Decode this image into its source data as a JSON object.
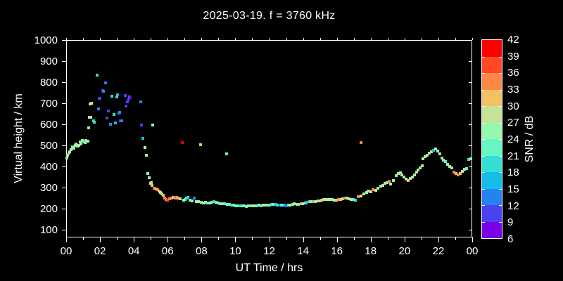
{
  "title": "2025-03-19. f = 3760 kHz",
  "chart_data": {
    "type": "scatter",
    "title": "2025-03-19. f = 3760 kHz",
    "xlabel": "UT Time / hrs",
    "ylabel": "Virtual height / km",
    "background": "#000000",
    "foreground": "#ffffff",
    "xlim": [
      0,
      24
    ],
    "x_major_hours": [
      0,
      2,
      4,
      6,
      8,
      10,
      12,
      14,
      16,
      18,
      20,
      22,
      24
    ],
    "x_tick_labels": [
      "00",
      "02",
      "04",
      "06",
      "08",
      "10",
      "12",
      "14",
      "16",
      "18",
      "20",
      "22",
      "00"
    ],
    "x_minor_hours": [
      1,
      3,
      5,
      7,
      9,
      11,
      13,
      15,
      17,
      19,
      21,
      23
    ],
    "y_major": [
      100,
      200,
      300,
      400,
      500,
      600,
      700,
      800,
      900,
      1000
    ],
    "y_tick_labels": [
      "100",
      "200",
      "300",
      "400",
      "500",
      "600",
      "700",
      "800",
      "900",
      "1000"
    ],
    "colorbar": {
      "label": "SNR / dB",
      "min": 6,
      "max": 42,
      "step": 3,
      "tick_labels_top_to_bottom": [
        "42",
        "39",
        "36",
        "33",
        "30",
        "27",
        "24",
        "21",
        "18",
        "15",
        "12",
        "9",
        "6"
      ],
      "colors_low_to_high": [
        "#7a00e6",
        "#4a42f0",
        "#2682f2",
        "#14bee6",
        "#34ded4",
        "#66f6c4",
        "#96f8ac",
        "#c4e394",
        "#f2c262",
        "#fc8848",
        "#ff4824",
        "#ff0000"
      ]
    },
    "point_format": [
      "ut_hours",
      "virtual_height_km",
      "snr_db"
    ],
    "points": [
      [
        0.0,
        440,
        24
      ],
      [
        0.05,
        452,
        27
      ],
      [
        0.13,
        462,
        24
      ],
      [
        0.17,
        470,
        27
      ],
      [
        0.25,
        480,
        24
      ],
      [
        0.33,
        492,
        21
      ],
      [
        0.42,
        487,
        27
      ],
      [
        0.5,
        500,
        24
      ],
      [
        0.54,
        507,
        27
      ],
      [
        0.63,
        498,
        27
      ],
      [
        0.71,
        500,
        24
      ],
      [
        0.79,
        517,
        27
      ],
      [
        0.83,
        507,
        24
      ],
      [
        0.92,
        525,
        24
      ],
      [
        1.0,
        518,
        21
      ],
      [
        1.08,
        515,
        24
      ],
      [
        1.13,
        522,
        27
      ],
      [
        1.25,
        520,
        24
      ],
      [
        1.29,
        583,
        24
      ],
      [
        1.34,
        633,
        27
      ],
      [
        1.38,
        697,
        27
      ],
      [
        1.42,
        635,
        24
      ],
      [
        1.46,
        700,
        27
      ],
      [
        1.58,
        617,
        18
      ],
      [
        1.63,
        610,
        18
      ],
      [
        1.79,
        833,
        18
      ],
      [
        1.88,
        673,
        12
      ],
      [
        1.92,
        723,
        9
      ],
      [
        1.96,
        725,
        9
      ],
      [
        2.13,
        760,
        9
      ],
      [
        2.17,
        758,
        12
      ],
      [
        2.29,
        797,
        12
      ],
      [
        2.38,
        630,
        9
      ],
      [
        2.46,
        663,
        9
      ],
      [
        2.59,
        600,
        12
      ],
      [
        2.67,
        733,
        18
      ],
      [
        2.8,
        647,
        18
      ],
      [
        2.88,
        607,
        15
      ],
      [
        2.96,
        730,
        18
      ],
      [
        3.0,
        740,
        15
      ],
      [
        3.09,
        653,
        12
      ],
      [
        3.13,
        657,
        12
      ],
      [
        3.17,
        617,
        9
      ],
      [
        3.26,
        617,
        12
      ],
      [
        3.46,
        737,
        9
      ],
      [
        3.51,
        687,
        9
      ],
      [
        3.59,
        707,
        9
      ],
      [
        3.67,
        720,
        9
      ],
      [
        3.71,
        730,
        12
      ],
      [
        3.76,
        727,
        6
      ],
      [
        4.38,
        707,
        12
      ],
      [
        4.42,
        597,
        9
      ],
      [
        4.5,
        533,
        15
      ],
      [
        4.63,
        490,
        24
      ],
      [
        4.71,
        453,
        24
      ],
      [
        4.8,
        367,
        24
      ],
      [
        4.87,
        347,
        27
      ],
      [
        4.95,
        320,
        27
      ],
      [
        5.0,
        323,
        27
      ],
      [
        5.05,
        310,
        30
      ],
      [
        5.1,
        598,
        24
      ],
      [
        5.17,
        297,
        33
      ],
      [
        5.3,
        293,
        30
      ],
      [
        5.38,
        290,
        33
      ],
      [
        5.47,
        283,
        30
      ],
      [
        5.55,
        277,
        27
      ],
      [
        5.63,
        270,
        27
      ],
      [
        5.72,
        263,
        30
      ],
      [
        5.8,
        250,
        33
      ],
      [
        5.88,
        243,
        33
      ],
      [
        5.97,
        240,
        36
      ],
      [
        6.09,
        247,
        33
      ],
      [
        6.2,
        250,
        33
      ],
      [
        6.3,
        252,
        30
      ],
      [
        6.42,
        250,
        33
      ],
      [
        6.51,
        253,
        33
      ],
      [
        6.6,
        250,
        30
      ],
      [
        6.72,
        247,
        27
      ],
      [
        6.85,
        513,
        39
      ],
      [
        6.93,
        240,
        24
      ],
      [
        7.0,
        243,
        21
      ],
      [
        7.1,
        250,
        18
      ],
      [
        7.18,
        253,
        18
      ],
      [
        7.3,
        240,
        21
      ],
      [
        7.43,
        238,
        24
      ],
      [
        7.55,
        250,
        12
      ],
      [
        7.68,
        233,
        27
      ],
      [
        7.8,
        232,
        24
      ],
      [
        7.93,
        503,
        30
      ],
      [
        7.97,
        230,
        21
      ],
      [
        8.1,
        228,
        24
      ],
      [
        8.22,
        230,
        27
      ],
      [
        8.35,
        227,
        21
      ],
      [
        8.47,
        228,
        24
      ],
      [
        8.6,
        231,
        21
      ],
      [
        8.72,
        233,
        18
      ],
      [
        8.85,
        230,
        21
      ],
      [
        8.97,
        228,
        24
      ],
      [
        9.1,
        225,
        21
      ],
      [
        9.22,
        223,
        24
      ],
      [
        9.35,
        222,
        21
      ],
      [
        9.47,
        460,
        21
      ],
      [
        9.5,
        221,
        24
      ],
      [
        9.63,
        219,
        21
      ],
      [
        9.75,
        218,
        18
      ],
      [
        9.88,
        216,
        21
      ],
      [
        10.0,
        215,
        24
      ],
      [
        10.13,
        213,
        21
      ],
      [
        10.25,
        214,
        18
      ],
      [
        10.38,
        212,
        21
      ],
      [
        10.5,
        213,
        24
      ],
      [
        10.63,
        211,
        21
      ],
      [
        10.75,
        212,
        24
      ],
      [
        10.88,
        214,
        21
      ],
      [
        11.0,
        213,
        27
      ],
      [
        11.13,
        215,
        24
      ],
      [
        11.25,
        214,
        21
      ],
      [
        11.38,
        216,
        24
      ],
      [
        11.5,
        215,
        21
      ],
      [
        11.63,
        217,
        24
      ],
      [
        11.75,
        216,
        27
      ],
      [
        11.88,
        218,
        24
      ],
      [
        12.0,
        218,
        21
      ],
      [
        12.13,
        220,
        18
      ],
      [
        12.25,
        219,
        21
      ],
      [
        12.38,
        221,
        15
      ],
      [
        12.5,
        218,
        18
      ],
      [
        12.63,
        216,
        12
      ],
      [
        12.75,
        218,
        21
      ],
      [
        12.88,
        217,
        18
      ],
      [
        13.0,
        215,
        12
      ],
      [
        13.13,
        217,
        21
      ],
      [
        13.25,
        218,
        24
      ],
      [
        13.38,
        221,
        21
      ],
      [
        13.5,
        222,
        27
      ],
      [
        13.63,
        220,
        24
      ],
      [
        13.75,
        221,
        21
      ],
      [
        13.88,
        222,
        33
      ],
      [
        14.0,
        224,
        27
      ],
      [
        14.13,
        226,
        24
      ],
      [
        14.25,
        230,
        15
      ],
      [
        14.38,
        233,
        18
      ],
      [
        14.5,
        235,
        24
      ],
      [
        14.63,
        233,
        33
      ],
      [
        14.75,
        234,
        27
      ],
      [
        14.88,
        236,
        24
      ],
      [
        15.0,
        238,
        27
      ],
      [
        15.13,
        240,
        30
      ],
      [
        15.25,
        242,
        27
      ],
      [
        15.38,
        244,
        24
      ],
      [
        15.5,
        245,
        27
      ],
      [
        15.63,
        244,
        24
      ],
      [
        15.75,
        243,
        27
      ],
      [
        15.88,
        241,
        24
      ],
      [
        16.0,
        240,
        27
      ],
      [
        16.13,
        242,
        33
      ],
      [
        16.25,
        245,
        30
      ],
      [
        16.38,
        247,
        27
      ],
      [
        16.5,
        250,
        33
      ],
      [
        16.63,
        249,
        27
      ],
      [
        16.75,
        247,
        24
      ],
      [
        16.88,
        244,
        27
      ],
      [
        17.0,
        243,
        21
      ],
      [
        17.13,
        241,
        18
      ],
      [
        17.28,
        257,
        33
      ],
      [
        17.44,
        513,
        33
      ],
      [
        17.44,
        260,
        27
      ],
      [
        17.61,
        270,
        27
      ],
      [
        17.78,
        277,
        24
      ],
      [
        17.86,
        283,
        24
      ],
      [
        18.03,
        280,
        27
      ],
      [
        18.15,
        290,
        33
      ],
      [
        18.32,
        287,
        27
      ],
      [
        18.45,
        297,
        24
      ],
      [
        18.61,
        307,
        24
      ],
      [
        18.74,
        310,
        27
      ],
      [
        18.86,
        320,
        24
      ],
      [
        18.99,
        323,
        27
      ],
      [
        19.11,
        330,
        33
      ],
      [
        19.2,
        317,
        27
      ],
      [
        19.36,
        333,
        24
      ],
      [
        19.53,
        357,
        24
      ],
      [
        19.66,
        367,
        27
      ],
      [
        19.78,
        370,
        24
      ],
      [
        19.87,
        360,
        27
      ],
      [
        19.99,
        350,
        24
      ],
      [
        20.12,
        340,
        27
      ],
      [
        20.24,
        333,
        30
      ],
      [
        20.37,
        343,
        27
      ],
      [
        20.49,
        350,
        24
      ],
      [
        20.62,
        360,
        27
      ],
      [
        20.74,
        373,
        24
      ],
      [
        20.83,
        383,
        27
      ],
      [
        20.95,
        393,
        24
      ],
      [
        21.08,
        403,
        27
      ],
      [
        21.12,
        437,
        24
      ],
      [
        21.24,
        447,
        27
      ],
      [
        21.37,
        453,
        24
      ],
      [
        21.49,
        463,
        27
      ],
      [
        21.62,
        470,
        24
      ],
      [
        21.74,
        477,
        15
      ],
      [
        21.87,
        483,
        24
      ],
      [
        21.99,
        473,
        27
      ],
      [
        22.12,
        460,
        24
      ],
      [
        22.24,
        440,
        27
      ],
      [
        22.33,
        430,
        24
      ],
      [
        22.45,
        423,
        21
      ],
      [
        22.58,
        410,
        24
      ],
      [
        22.7,
        400,
        27
      ],
      [
        22.83,
        393,
        24
      ],
      [
        22.95,
        373,
        33
      ],
      [
        23.08,
        367,
        30
      ],
      [
        23.2,
        360,
        33
      ],
      [
        23.33,
        367,
        30
      ],
      [
        23.45,
        377,
        27
      ],
      [
        23.58,
        387,
        24
      ],
      [
        23.7,
        390,
        21
      ],
      [
        23.83,
        433,
        18
      ],
      [
        23.95,
        437,
        24
      ]
    ]
  }
}
